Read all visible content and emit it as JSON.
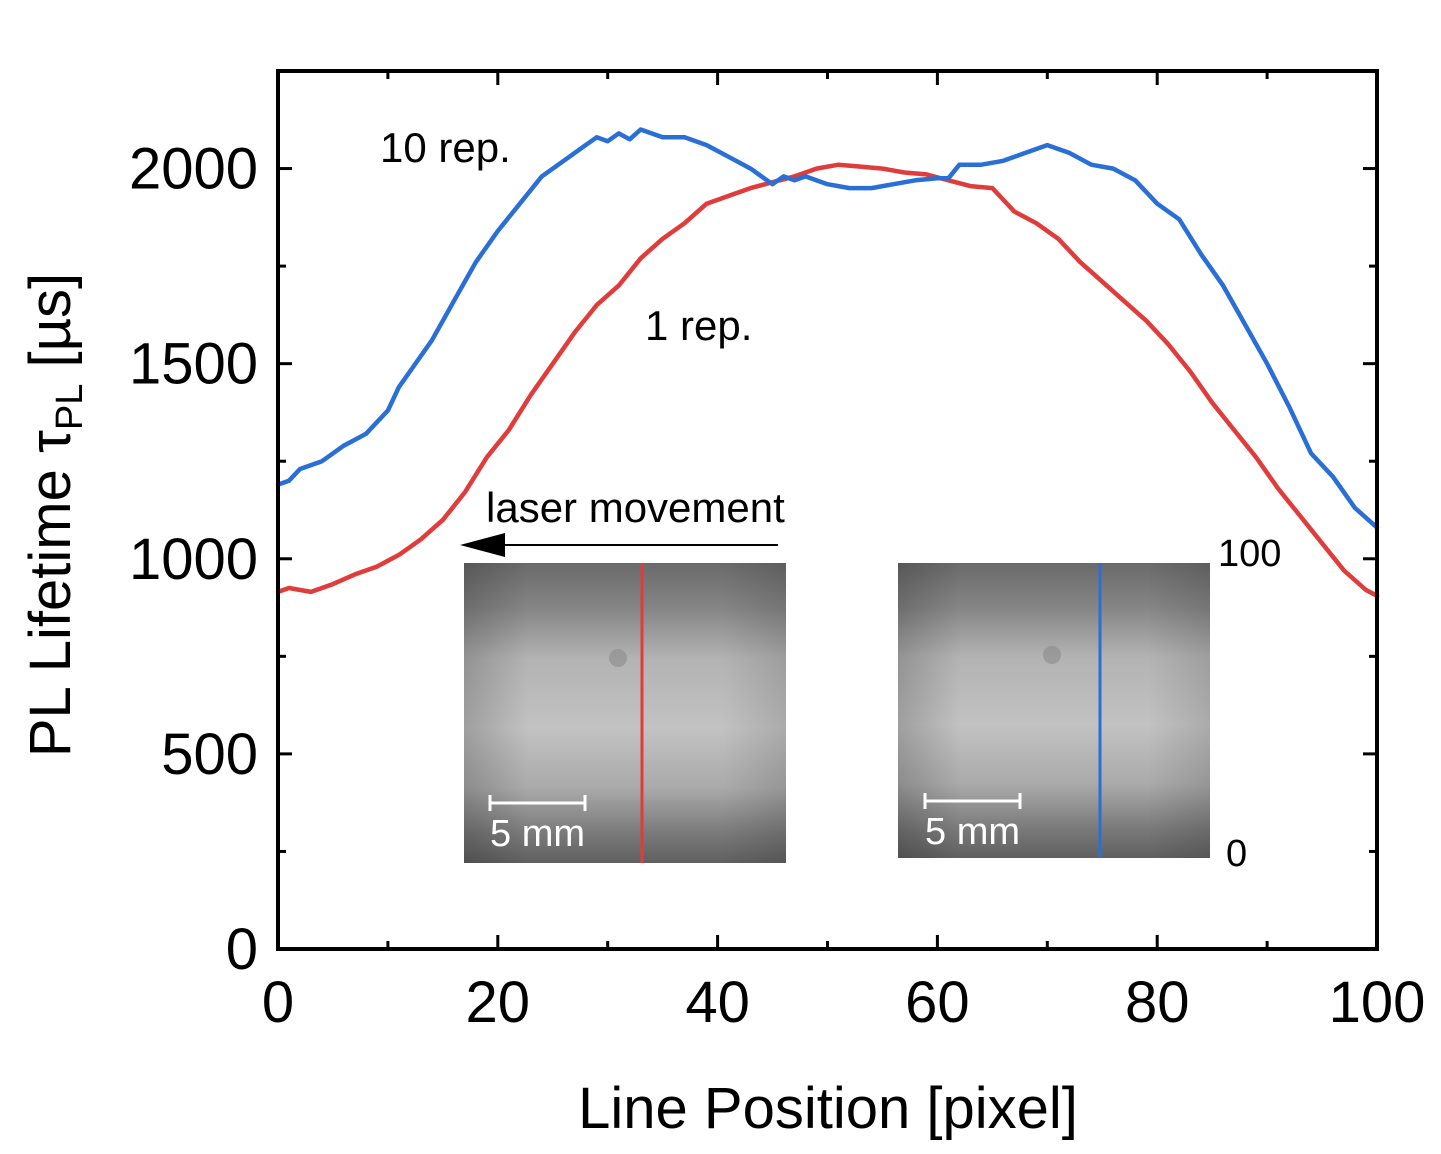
{
  "chart_data": {
    "type": "line",
    "xlabel": "Line Position [pixel]",
    "ylabel": {
      "main": "PL Lifetime τ",
      "sub": "PL",
      "unit": " [µs]"
    },
    "xlim": [
      0,
      100
    ],
    "ylim": [
      0,
      2250
    ],
    "xticks": [
      0,
      20,
      40,
      60,
      80,
      100
    ],
    "yticks": [
      0,
      500,
      1000,
      1500,
      2000
    ],
    "grid": false,
    "series": [
      {
        "name": "1 rep.",
        "color": "#e03c3c",
        "x": [
          0,
          1,
          3,
          5,
          7,
          9,
          11,
          13,
          15,
          17,
          19,
          21,
          23,
          25,
          27,
          29,
          31,
          33,
          35,
          37,
          39,
          41,
          43,
          45,
          47,
          49,
          51,
          53,
          55,
          57,
          59,
          61,
          63,
          65,
          67,
          69,
          71,
          73,
          75,
          77,
          79,
          81,
          83,
          85,
          87,
          89,
          91,
          93,
          95,
          97,
          99,
          100
        ],
        "y": [
          915,
          925,
          915,
          935,
          960,
          980,
          1010,
          1050,
          1100,
          1170,
          1260,
          1330,
          1420,
          1500,
          1580,
          1650,
          1700,
          1770,
          1820,
          1860,
          1910,
          1930,
          1950,
          1965,
          1980,
          2000,
          2010,
          2005,
          2000,
          1990,
          1985,
          1970,
          1955,
          1950,
          1890,
          1860,
          1820,
          1760,
          1710,
          1660,
          1610,
          1550,
          1480,
          1400,
          1330,
          1260,
          1180,
          1110,
          1040,
          970,
          920,
          905
        ]
      },
      {
        "name": "10 rep.",
        "color": "#2a6fd6",
        "x": [
          0,
          1,
          2,
          4,
          6,
          8,
          10,
          11,
          12,
          14,
          16,
          18,
          20,
          22,
          24,
          26,
          28,
          29,
          30,
          31,
          32,
          33,
          35,
          37,
          39,
          41,
          43,
          45,
          46,
          47,
          48,
          50,
          52,
          54,
          56,
          58,
          60,
          61,
          62,
          64,
          66,
          68,
          70,
          72,
          74,
          76,
          78,
          80,
          82,
          84,
          86,
          88,
          90,
          92,
          94,
          96,
          98,
          100
        ],
        "y": [
          1190,
          1200,
          1230,
          1250,
          1290,
          1320,
          1380,
          1440,
          1480,
          1560,
          1660,
          1760,
          1840,
          1910,
          1980,
          2020,
          2060,
          2080,
          2070,
          2090,
          2075,
          2100,
          2080,
          2080,
          2060,
          2030,
          2000,
          1960,
          1980,
          1970,
          1980,
          1960,
          1950,
          1950,
          1960,
          1970,
          1975,
          1975,
          2010,
          2010,
          2020,
          2040,
          2060,
          2040,
          2010,
          2000,
          1970,
          1910,
          1870,
          1780,
          1700,
          1600,
          1500,
          1390,
          1270,
          1210,
          1130,
          1080
        ]
      }
    ],
    "annotations": {
      "label_10rep": "10 rep.",
      "label_1rep": "1 rep.",
      "laser_movement": "laser movement",
      "scalebar_left": "5 mm",
      "scalebar_right": "5 mm",
      "colorbar_max": "100",
      "colorbar_min": "0"
    }
  }
}
